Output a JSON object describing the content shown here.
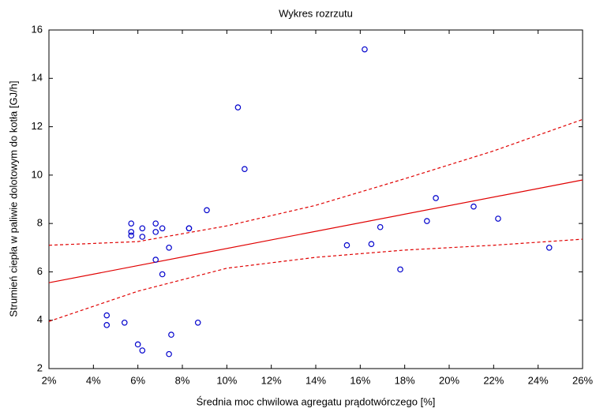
{
  "chart_data": {
    "type": "scatter",
    "title": "Wykres rozrzutu",
    "x_label": "Średnia moc chwilowa agregatu prądotwórczego [%]",
    "y_label": "Strumień ciepła w paliwie dolotowym do kotła [GJ/h]",
    "xlim": [
      2,
      26
    ],
    "ylim": [
      2,
      16
    ],
    "xticks": [
      {
        "value": 2,
        "label": "2%"
      },
      {
        "value": 4,
        "label": "4%"
      },
      {
        "value": 6,
        "label": "6%"
      },
      {
        "value": 8,
        "label": "8%"
      },
      {
        "value": 10,
        "label": "10%"
      },
      {
        "value": 12,
        "label": "12%"
      },
      {
        "value": 14,
        "label": "14%"
      },
      {
        "value": 16,
        "label": "16%"
      },
      {
        "value": 18,
        "label": "18%"
      },
      {
        "value": 20,
        "label": "20%"
      },
      {
        "value": 22,
        "label": "22%"
      },
      {
        "value": 24,
        "label": "24%"
      },
      {
        "value": 26,
        "label": "26%"
      }
    ],
    "yticks": [
      2,
      4,
      6,
      8,
      10,
      12,
      14,
      16
    ],
    "grid": false,
    "points": {
      "color": "#0000cc",
      "x": [
        4.6,
        4.6,
        5.4,
        5.7,
        5.7,
        5.7,
        6.0,
        6.2,
        6.2,
        6.2,
        6.8,
        6.8,
        6.8,
        7.1,
        7.1,
        7.4,
        7.4,
        7.5,
        8.3,
        8.3,
        8.7,
        9.1,
        10.5,
        10.8,
        15.4,
        16.2,
        16.5,
        16.9,
        17.8,
        19.0,
        19.4,
        21.1,
        22.2,
        24.5
      ],
      "values": [
        4.2,
        3.8,
        3.9,
        8.0,
        7.65,
        7.5,
        3.0,
        2.75,
        7.8,
        7.45,
        8.0,
        7.65,
        6.5,
        7.8,
        5.9,
        7.0,
        2.6,
        3.4,
        7.8,
        7.8,
        3.9,
        8.55,
        12.8,
        10.25,
        7.1,
        15.2,
        7.15,
        7.85,
        6.1,
        8.1,
        9.05,
        8.7,
        8.2,
        7.0
      ]
    },
    "lines": [
      {
        "color": "#e00000",
        "dashed": false,
        "x": [
          2,
          26
        ],
        "values": [
          5.55,
          9.8
        ]
      },
      {
        "color": "#e00000",
        "dashed": true,
        "x": [
          2,
          6,
          10,
          14,
          18,
          22,
          26
        ],
        "values": [
          7.1,
          7.25,
          7.9,
          8.75,
          9.85,
          11.0,
          12.3
        ]
      },
      {
        "color": "#e00000",
        "dashed": true,
        "x": [
          2,
          6,
          10,
          14,
          18,
          22,
          26
        ],
        "values": [
          3.95,
          5.2,
          6.15,
          6.6,
          6.9,
          7.1,
          7.35
        ]
      }
    ]
  }
}
